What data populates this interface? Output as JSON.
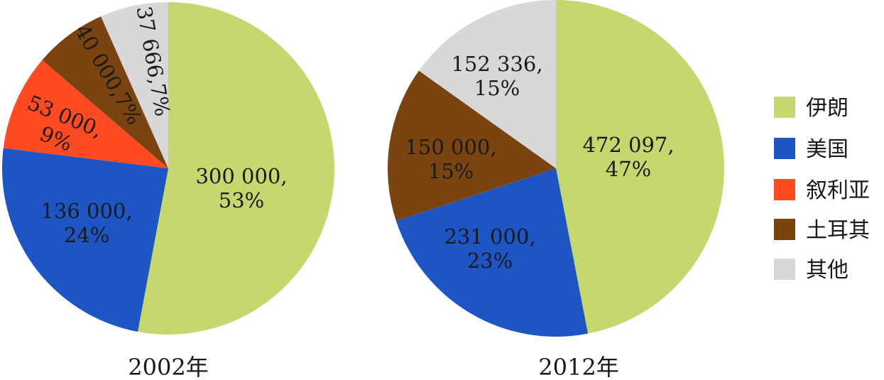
{
  "chart_data": [
    {
      "type": "pie",
      "caption": "2002年",
      "slices": [
        {
          "category": "伊朗",
          "value": 300000,
          "label": "300 000,",
          "percent_label": "53%"
        },
        {
          "category": "美国",
          "value": 136000,
          "label": "136 000,",
          "percent_label": "24%"
        },
        {
          "category": "叙利亚",
          "value": 53000,
          "label": "53 000,",
          "percent_label": "9%"
        },
        {
          "category": "土耳其",
          "value": 40000,
          "label": "40 000,7%",
          "percent_label": ""
        },
        {
          "category": "其他",
          "value": 37666,
          "label": "37 666,7%",
          "percent_label": ""
        }
      ]
    },
    {
      "type": "pie",
      "caption": "2012年",
      "slices": [
        {
          "category": "伊朗",
          "value": 472097,
          "label": "472 097,",
          "percent_label": "47%"
        },
        {
          "category": "美国",
          "value": 231000,
          "label": "231 000,",
          "percent_label": "23%"
        },
        {
          "category": "土耳其",
          "value": 150000,
          "label": "150 000,",
          "percent_label": "15%"
        },
        {
          "category": "其他",
          "value": 152336,
          "label": "152 336,",
          "percent_label": "15%"
        }
      ]
    }
  ],
  "legend": [
    {
      "label": "伊朗",
      "color": "#c5d86d"
    },
    {
      "label": "美国",
      "color": "#1e55c4"
    },
    {
      "label": "叙利亚",
      "color": "#ff4a22"
    },
    {
      "label": "土耳其",
      "color": "#7a4410"
    },
    {
      "label": "其他",
      "color": "#d8d8d8"
    }
  ]
}
